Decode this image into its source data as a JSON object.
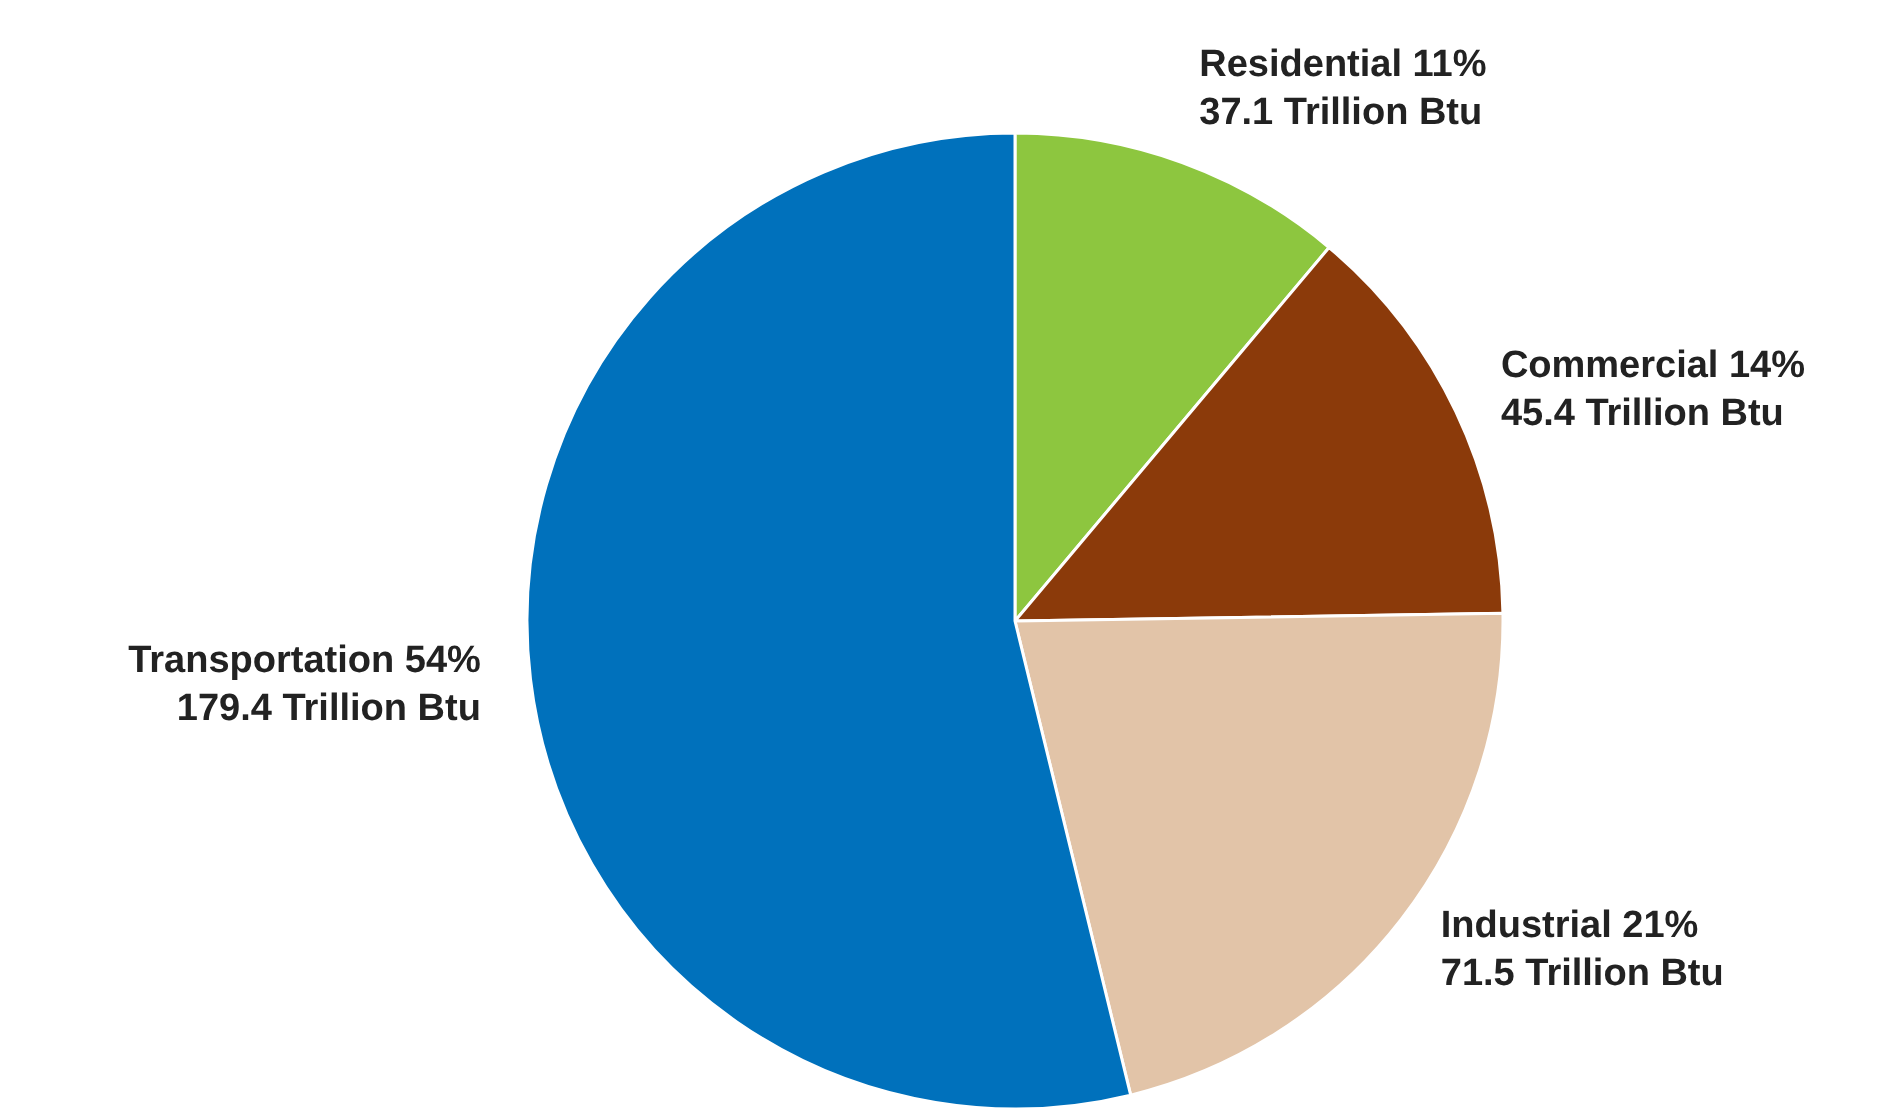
{
  "chart_data": {
    "type": "pie",
    "categories": [
      "Residential",
      "Commercial",
      "Industrial",
      "Transportation"
    ],
    "values": [
      37.1,
      45.4,
      71.5,
      179.4
    ],
    "colors": [
      "#8dc63f",
      "#8b3a0a",
      "#e2c4a8",
      "#0071bc"
    ],
    "value_labels": [
      "11%\n37.1 Trillion Btu",
      "14%\n45.4 Trillion Btu",
      "21%\n71.5 Trillion Btu",
      "54%\n179.4 Trillion Btu"
    ]
  }
}
